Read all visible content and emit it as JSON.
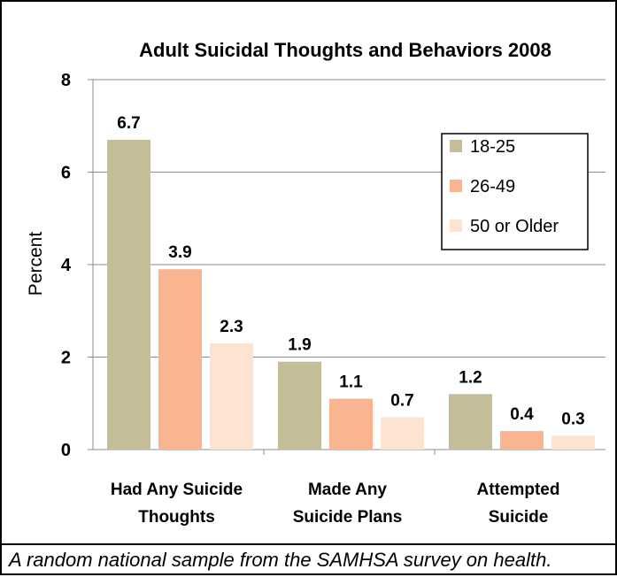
{
  "chart_data": {
    "type": "bar",
    "title": "Adult Suicidal Thoughts and Behaviors 2008",
    "xlabel": "",
    "ylabel": "Percent",
    "ylim": [
      0,
      8
    ],
    "yticks": [
      0,
      2,
      4,
      6,
      8
    ],
    "grid": true,
    "legend_position": "top-right",
    "categories": [
      [
        "Had Any Suicide",
        "Thoughts"
      ],
      [
        "Made Any",
        "Suicide Plans"
      ],
      [
        "Attempted",
        "Suicide"
      ]
    ],
    "series": [
      {
        "name": "18-25",
        "color": "#c4bd97",
        "values": [
          6.7,
          1.9,
          1.2
        ]
      },
      {
        "name": "26-49",
        "color": "#fab48f",
        "values": [
          3.9,
          1.1,
          0.4
        ]
      },
      {
        "name": "50 or Older",
        "color": "#fce3d2",
        "values": [
          2.3,
          0.7,
          0.3
        ]
      }
    ]
  },
  "caption": "A random national sample from the SAMHSA survey on health."
}
